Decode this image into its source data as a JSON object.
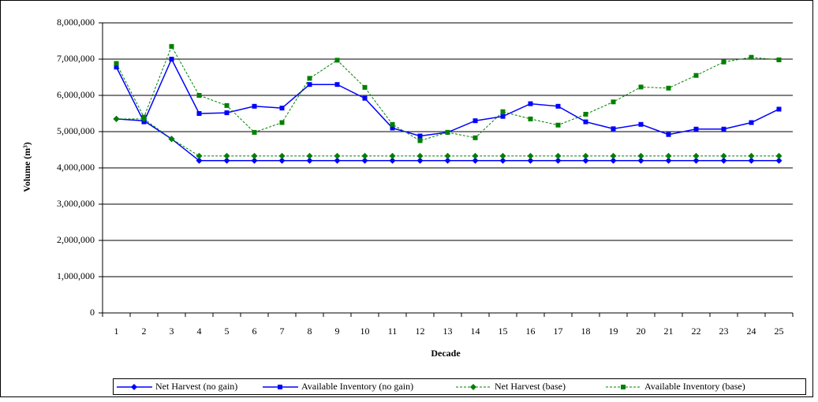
{
  "chart_data": {
    "type": "line",
    "x_label": "Decade",
    "y_label": "Volume (m³)",
    "categories": [
      "1",
      "2",
      "3",
      "4",
      "5",
      "6",
      "7",
      "8",
      "9",
      "10",
      "11",
      "12",
      "13",
      "14",
      "15",
      "16",
      "17",
      "18",
      "19",
      "20",
      "21",
      "22",
      "23",
      "24",
      "25"
    ],
    "ylim": [
      0,
      8000000
    ],
    "yticks": [
      0,
      {
        "value": 1000000,
        "label": "1,000,000"
      },
      {
        "value": 2000000,
        "label": "2,000,000"
      },
      {
        "value": 3000000,
        "label": "3,000,000"
      },
      {
        "value": 4000000,
        "label": "4,000,000"
      },
      {
        "value": 5000000,
        "label": "5,000,000"
      },
      {
        "value": 6000000,
        "label": "6,000,000"
      },
      {
        "value": 7000000,
        "label": "7,000,000"
      },
      {
        "value": 8000000,
        "label": "8,000,000"
      }
    ],
    "grid": true,
    "legend": "bottom",
    "series": [
      {
        "name": "Net Harvest (no gain)",
        "color": "#0000ff",
        "marker": "diamond",
        "dashed": false,
        "values": [
          5350000,
          5300000,
          4800000,
          4200000,
          4200000,
          4200000,
          4200000,
          4200000,
          4200000,
          4200000,
          4200000,
          4200000,
          4200000,
          4200000,
          4200000,
          4200000,
          4200000,
          4200000,
          4200000,
          4200000,
          4200000,
          4200000,
          4200000,
          4200000,
          4200000
        ]
      },
      {
        "name": "Available Inventory (no gain)",
        "color": "#0000ff",
        "marker": "square",
        "dashed": false,
        "values": [
          6780000,
          5270000,
          7000000,
          5500000,
          5520000,
          5700000,
          5650000,
          6300000,
          6300000,
          5920000,
          5100000,
          4880000,
          4980000,
          5300000,
          5420000,
          5770000,
          5700000,
          5270000,
          5080000,
          5200000,
          4920000,
          5070000,
          5070000,
          5250000,
          5620000
        ]
      },
      {
        "name": "Net Harvest (base)",
        "color": "#008000",
        "marker": "diamond",
        "dashed": true,
        "values": [
          5350000,
          5350000,
          4800000,
          4330000,
          4330000,
          4330000,
          4330000,
          4330000,
          4330000,
          4330000,
          4330000,
          4330000,
          4330000,
          4330000,
          4330000,
          4330000,
          4330000,
          4330000,
          4330000,
          4330000,
          4330000,
          4330000,
          4330000,
          4330000,
          4330000
        ]
      },
      {
        "name": "Available Inventory (base)",
        "color": "#008000",
        "marker": "square",
        "dashed": true,
        "values": [
          6880000,
          5400000,
          7350000,
          6000000,
          5720000,
          4980000,
          5250000,
          6470000,
          6970000,
          6220000,
          5200000,
          4750000,
          4980000,
          4830000,
          5550000,
          5350000,
          5180000,
          5480000,
          5820000,
          6230000,
          6200000,
          6550000,
          6920000,
          7050000,
          6980000
        ]
      }
    ]
  }
}
